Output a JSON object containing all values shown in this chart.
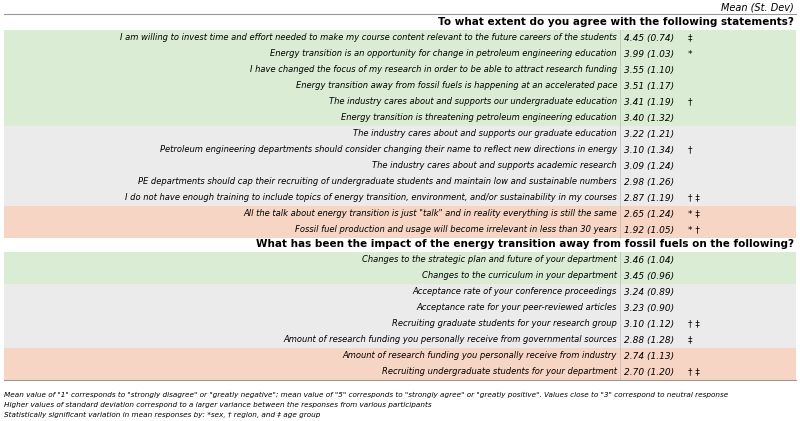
{
  "title1": "To what extent do you agree with the following statements?",
  "title2": "What has been the impact of the energy transition away from fossil fuels on the following?",
  "header": "Mean (St. Dev)",
  "footnote_lines": [
    "Mean value of \"1\" corresponds to \"strongly disagree\" or \"greatly negative\"; mean value of \"5\" corresponds to \"strongly agree\" or \"greatly positive\". Values close to \"3\" correspond to neutral response",
    "Higher values of standard deviation correspond to a larger variance between the responses from various participants",
    "Statistically significant variation in mean responses by: *sex, † region, and ‡ age group"
  ],
  "rows_section1": [
    {
      "text": "I am willing to invest time and effort needed to make my course content relevant to the future careers of the students",
      "mean": "4.45 (0.74)",
      "sig": "‡",
      "color": "#daecd3"
    },
    {
      "text": "Energy transition is an opportunity for change in petroleum engineering education",
      "mean": "3.99 (1.03)",
      "sig": "*",
      "color": "#daecd3"
    },
    {
      "text": "I have changed the focus of my research in order to be able to attract research funding",
      "mean": "3.55 (1.10)",
      "sig": "",
      "color": "#daecd3"
    },
    {
      "text": "Energy transition away from fossil fuels is happening at an accelerated pace",
      "mean": "3.51 (1.17)",
      "sig": "",
      "color": "#daecd3"
    },
    {
      "text": "The industry cares about and supports our undergraduate education",
      "mean": "3.41 (1.19)",
      "sig": "†",
      "color": "#daecd3"
    },
    {
      "text": "Energy transition is threatening petroleum engineering education",
      "mean": "3.40 (1.32)",
      "sig": "",
      "color": "#daecd3"
    },
    {
      "text": "The industry cares about and supports our graduate education",
      "mean": "3.22 (1.21)",
      "sig": "",
      "color": "#ebebeb"
    },
    {
      "text": "Petroleum engineering departments should consider changing their name to reflect new directions in energy",
      "mean": "3.10 (1.34)",
      "sig": "†",
      "color": "#ebebeb"
    },
    {
      "text": "The industry cares about and supports academic research",
      "mean": "3.09 (1.24)",
      "sig": "",
      "color": "#ebebeb"
    },
    {
      "text": "PE departments should cap their recruiting of undergraduate students and maintain low and sustainable numbers",
      "mean": "2.98 (1.26)",
      "sig": "",
      "color": "#ebebeb"
    },
    {
      "text": "I do not have enough training to include topics of energy transition, environment, and/or sustainability in my courses",
      "mean": "2.87 (1.19)",
      "sig": "† ‡",
      "color": "#ebebeb"
    },
    {
      "text": "All the talk about energy transition is just \"talk\" and in reality everything is still the same",
      "mean": "2.65 (1.24)",
      "sig": "* ‡",
      "color": "#f7d5c5"
    },
    {
      "text": "Fossil fuel production and usage will become irrelevant in less than 30 years",
      "mean": "1.92 (1.05)",
      "sig": "* †",
      "color": "#f7d5c5"
    }
  ],
  "rows_section2": [
    {
      "text": "Changes to the strategic plan and future of your department",
      "mean": "3.46 (1.04)",
      "sig": "",
      "color": "#daecd3"
    },
    {
      "text": "Changes to the curriculum in your department",
      "mean": "3.45 (0.96)",
      "sig": "",
      "color": "#daecd3"
    },
    {
      "text": "Acceptance rate of your conference proceedings",
      "mean": "3.24 (0.89)",
      "sig": "",
      "color": "#ebebeb"
    },
    {
      "text": "Acceptance rate for your peer-reviewed articles",
      "mean": "3.23 (0.90)",
      "sig": "",
      "color": "#ebebeb"
    },
    {
      "text": "Recruiting graduate students for your research group",
      "mean": "3.10 (1.12)",
      "sig": "† ‡",
      "color": "#ebebeb"
    },
    {
      "text": "Amount of research funding you personally receive from governmental sources",
      "mean": "2.88 (1.28)",
      "sig": "‡",
      "color": "#ebebeb"
    },
    {
      "text": "Amount of research funding you personally receive from industry",
      "mean": "2.74 (1.13)",
      "sig": "",
      "color": "#f7d5c5"
    },
    {
      "text": "Recruiting undergraduate students for your department",
      "mean": "2.70 (1.20)",
      "sig": "† ‡",
      "color": "#f7d5c5"
    }
  ],
  "bg_color": "#ffffff",
  "text_color": "#000000",
  "col_split": 0.775
}
